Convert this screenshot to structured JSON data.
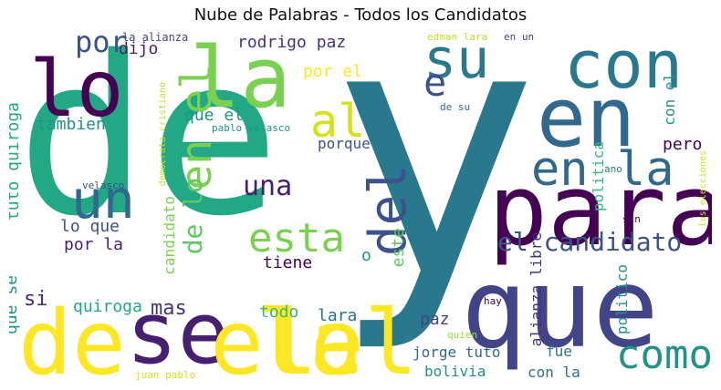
{
  "title": "Nube de Palabras - Todos los Candidatos",
  "words": [
    {
      "text": "de",
      "color": "#22a884"
    },
    {
      "text": "y",
      "color": "#2a788e"
    },
    {
      "text": "que",
      "color": "#414487"
    },
    {
      "text": "lo",
      "color": "#440154"
    },
    {
      "text": "la",
      "color": "#7ad151"
    },
    {
      "text": "con",
      "color": "#2a788e"
    },
    {
      "text": "en",
      "color": "#31688e"
    },
    {
      "text": "para",
      "color": "#440154"
    },
    {
      "text": "se",
      "color": "#481f70"
    },
    {
      "text": "el",
      "color": "#fde725"
    },
    {
      "text": "el",
      "color": "#fde725"
    },
    {
      "text": "la",
      "color": "#fde725"
    },
    {
      "text": "de",
      "color": "#fde725"
    },
    {
      "text": "su",
      "color": "#2a788e"
    },
    {
      "text": "e",
      "color": "#3b528b"
    },
    {
      "text": "al",
      "color": "#d2e21b"
    },
    {
      "text": "en el",
      "color": "#7ad151"
    },
    {
      "text": "un",
      "color": "#31688e"
    },
    {
      "text": "en la",
      "color": "#31688e"
    },
    {
      "text": "del",
      "color": "#3b528b"
    },
    {
      "text": "esta",
      "color": "#7ad151"
    },
    {
      "text": "el candidato",
      "color": "#3b528b"
    },
    {
      "text": "como",
      "color": "#21918c"
    },
    {
      "text": "una",
      "color": "#481f70"
    },
    {
      "text": "por",
      "color": "#3b528b"
    },
    {
      "text": "dijo",
      "color": "#481f70"
    },
    {
      "text": "rodrigo paz",
      "color": "#46337e"
    },
    {
      "text": "por el",
      "color": "#fde725"
    },
    {
      "text": "que el",
      "color": "#21918c"
    },
    {
      "text": "porque",
      "color": "#3b528b"
    },
    {
      "text": "pero",
      "color": "#440154"
    },
    {
      "text": "tambien",
      "color": "#21918c"
    },
    {
      "text": "tuto quiroga",
      "color": "#22a884"
    },
    {
      "text": "de lo",
      "color": "#5ec962"
    },
    {
      "text": "lo que",
      "color": "#3b528b"
    },
    {
      "text": "por la",
      "color": "#481f70"
    },
    {
      "text": "tiene",
      "color": "#440154"
    },
    {
      "text": "o",
      "color": "#21918c"
    },
    {
      "text": "este",
      "color": "#5ec962"
    },
    {
      "text": "si",
      "color": "#482878"
    },
    {
      "text": "quiroga",
      "color": "#22a884"
    },
    {
      "text": "mas",
      "color": "#46337e"
    },
    {
      "text": "que se",
      "color": "#21918c"
    },
    {
      "text": "todo",
      "color": "#35b779"
    },
    {
      "text": "lara",
      "color": "#2c728e"
    },
    {
      "text": "paz",
      "color": "#414487"
    },
    {
      "text": "jorge tuto",
      "color": "#31688e"
    },
    {
      "text": "fue",
      "color": "#2a788e"
    },
    {
      "text": "bolivia",
      "color": "#21918c"
    },
    {
      "text": "con la",
      "color": "#2c728e"
    },
    {
      "text": "alianza libre",
      "color": "#46337e"
    },
    {
      "text": "politico",
      "color": "#21918c"
    },
    {
      "text": "politica",
      "color": "#35b779"
    },
    {
      "text": "con el",
      "color": "#21918c"
    },
    {
      "text": "candidato",
      "color": "#7ad151"
    },
    {
      "text": "la alianza",
      "color": "#414487"
    },
    {
      "text": "edman lara",
      "color": "#bddf26"
    },
    {
      "text": "en un",
      "color": "#3e4989"
    },
    {
      "text": "de su",
      "color": "#31688e"
    },
    {
      "text": "democrata cristiano",
      "color": "#bddf26"
    },
    {
      "text": "pablo velasco",
      "color": "#21918c"
    },
    {
      "text": "velasco",
      "color": "#3b528b"
    },
    {
      "text": "ano",
      "color": "#2c728e"
    },
    {
      "text": "quien",
      "color": "#a0da39"
    },
    {
      "text": "sin",
      "color": "#440154"
    },
    {
      "text": "las elecciones",
      "color": "#d2e21b"
    },
    {
      "text": "hay",
      "color": "#440154"
    },
    {
      "text": "juan pablo",
      "color": "#d2e21b"
    }
  ]
}
